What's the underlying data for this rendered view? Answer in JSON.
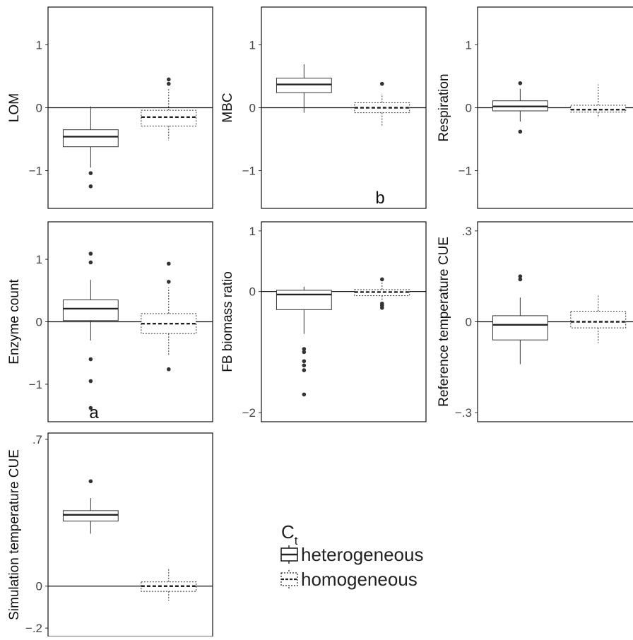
{
  "chart_data": [
    {
      "type": "boxplot",
      "ylabel": "LOM",
      "yticks": [
        {
          "v": 1,
          "label": "1"
        },
        {
          "v": 0,
          "label": "0"
        },
        {
          "v": -1,
          "label": "−1"
        }
      ],
      "ylim": [
        -1.6,
        1.6
      ],
      "annotation": "",
      "series": [
        {
          "name": "heterogeneous",
          "q1": -0.62,
          "median": -0.46,
          "q3": -0.35,
          "whisker_low": -0.95,
          "whisker_high": 0.02,
          "outliers": [
            -1.04,
            -1.25
          ]
        },
        {
          "name": "homogeneous",
          "q1": -0.29,
          "median": -0.15,
          "q3": -0.04,
          "whisker_low": -0.52,
          "whisker_high": 0.31,
          "outliers": [
            0.38,
            0.45
          ]
        }
      ]
    },
    {
      "type": "boxplot",
      "ylabel": "MBC",
      "yticks": [
        {
          "v": 1,
          "label": "1"
        },
        {
          "v": 0,
          "label": "0"
        },
        {
          "v": -1,
          "label": "−1"
        }
      ],
      "ylim": [
        -1.6,
        1.6
      ],
      "annotation": "b",
      "series": [
        {
          "name": "heterogeneous",
          "q1": 0.24,
          "median": 0.37,
          "q3": 0.47,
          "whisker_low": -0.08,
          "whisker_high": 0.69,
          "outliers": []
        },
        {
          "name": "homogeneous",
          "q1": -0.08,
          "median": 0.0,
          "q3": 0.08,
          "whisker_low": -0.3,
          "whisker_high": 0.22,
          "outliers": [
            0.38
          ]
        }
      ]
    },
    {
      "type": "boxplot",
      "ylabel": "Respiration",
      "yticks": [
        {
          "v": 1,
          "label": "1"
        },
        {
          "v": 0,
          "label": "0"
        },
        {
          "v": -1,
          "label": "−1"
        }
      ],
      "ylim": [
        -1.6,
        1.6
      ],
      "annotation": "",
      "series": [
        {
          "name": "heterogeneous",
          "q1": -0.05,
          "median": 0.02,
          "q3": 0.11,
          "whisker_low": -0.22,
          "whisker_high": 0.3,
          "outliers": [
            0.39,
            -0.38
          ]
        },
        {
          "name": "homogeneous",
          "q1": -0.07,
          "median": -0.03,
          "q3": 0.04,
          "whisker_low": -0.16,
          "whisker_high": 0.37,
          "outliers": []
        }
      ]
    },
    {
      "type": "boxplot",
      "ylabel": "Enzyme count",
      "yticks": [
        {
          "v": 1,
          "label": "1"
        },
        {
          "v": 0,
          "label": "0"
        },
        {
          "v": -1,
          "label": "−1"
        }
      ],
      "ylim": [
        -1.6,
        1.6
      ],
      "annotation": "a",
      "series": [
        {
          "name": "heterogeneous",
          "q1": 0.02,
          "median": 0.21,
          "q3": 0.35,
          "whisker_low": -0.3,
          "whisker_high": 0.67,
          "outliers": [
            1.09,
            0.95,
            -0.6,
            -0.95,
            -1.38
          ]
        },
        {
          "name": "homogeneous",
          "q1": -0.19,
          "median": -0.03,
          "q3": 0.13,
          "whisker_low": -0.55,
          "whisker_high": 0.55,
          "outliers": [
            0.93,
            0.64,
            -0.76
          ]
        }
      ]
    },
    {
      "type": "boxplot",
      "ylabel": "FB biomass ratio",
      "yticks": [
        {
          "v": 1,
          "label": "1"
        },
        {
          "v": 0,
          "label": "0"
        },
        {
          "v": -2,
          "label": "−2"
        }
      ],
      "ylim": [
        -2.15,
        1.15
      ],
      "annotation": "",
      "series": [
        {
          "name": "heterogeneous",
          "q1": -0.3,
          "median": -0.05,
          "q3": 0.02,
          "whisker_low": -0.7,
          "whisker_high": 0.08,
          "outliers": [
            -0.95,
            -1.0,
            -1.15,
            -1.22,
            -1.3,
            -1.7
          ]
        },
        {
          "name": "homogeneous",
          "q1": -0.07,
          "median": -0.01,
          "q3": 0.03,
          "whisker_low": -0.14,
          "whisker_high": 0.18,
          "outliers": [
            0.2,
            -0.2,
            -0.23,
            -0.27
          ]
        }
      ]
    },
    {
      "type": "boxplot",
      "ylabel": "Reference temperature CUE",
      "yticks": [
        {
          "v": 0.3,
          "label": ".3"
        },
        {
          "v": 0,
          "label": "0"
        },
        {
          "v": -0.3,
          "label": "−.3"
        }
      ],
      "ylim": [
        -0.33,
        0.33
      ],
      "annotation": "",
      "series": [
        {
          "name": "heterogeneous",
          "q1": -0.06,
          "median": -0.01,
          "q3": 0.02,
          "whisker_low": -0.14,
          "whisker_high": 0.08,
          "outliers": [
            0.15,
            0.14
          ]
        },
        {
          "name": "homogeneous",
          "q1": -0.02,
          "median": 0.0,
          "q3": 0.035,
          "whisker_low": -0.07,
          "whisker_high": 0.09,
          "outliers": []
        }
      ]
    },
    {
      "type": "boxplot",
      "ylabel": "Simulation temperature CUE",
      "yticks": [
        {
          "v": 0.7,
          "label": ".7"
        },
        {
          "v": 0,
          "label": "0"
        },
        {
          "v": -0.2,
          "label": "−.2"
        }
      ],
      "ylim": [
        -0.24,
        0.73
      ],
      "annotation": "",
      "series": [
        {
          "name": "heterogeneous",
          "q1": 0.31,
          "median": 0.34,
          "q3": 0.36,
          "whisker_low": 0.25,
          "whisker_high": 0.42,
          "outliers": [
            0.5
          ]
        },
        {
          "name": "homogeneous",
          "q1": -0.025,
          "median": 0.0,
          "q3": 0.02,
          "whisker_low": -0.07,
          "whisker_high": 0.085,
          "outliers": []
        }
      ]
    }
  ],
  "legend": {
    "title": "C",
    "title_sub": "t",
    "items": [
      {
        "label": "heterogeneous",
        "style": "solid"
      },
      {
        "label": "homogeneous",
        "style": "dotted"
      }
    ]
  }
}
